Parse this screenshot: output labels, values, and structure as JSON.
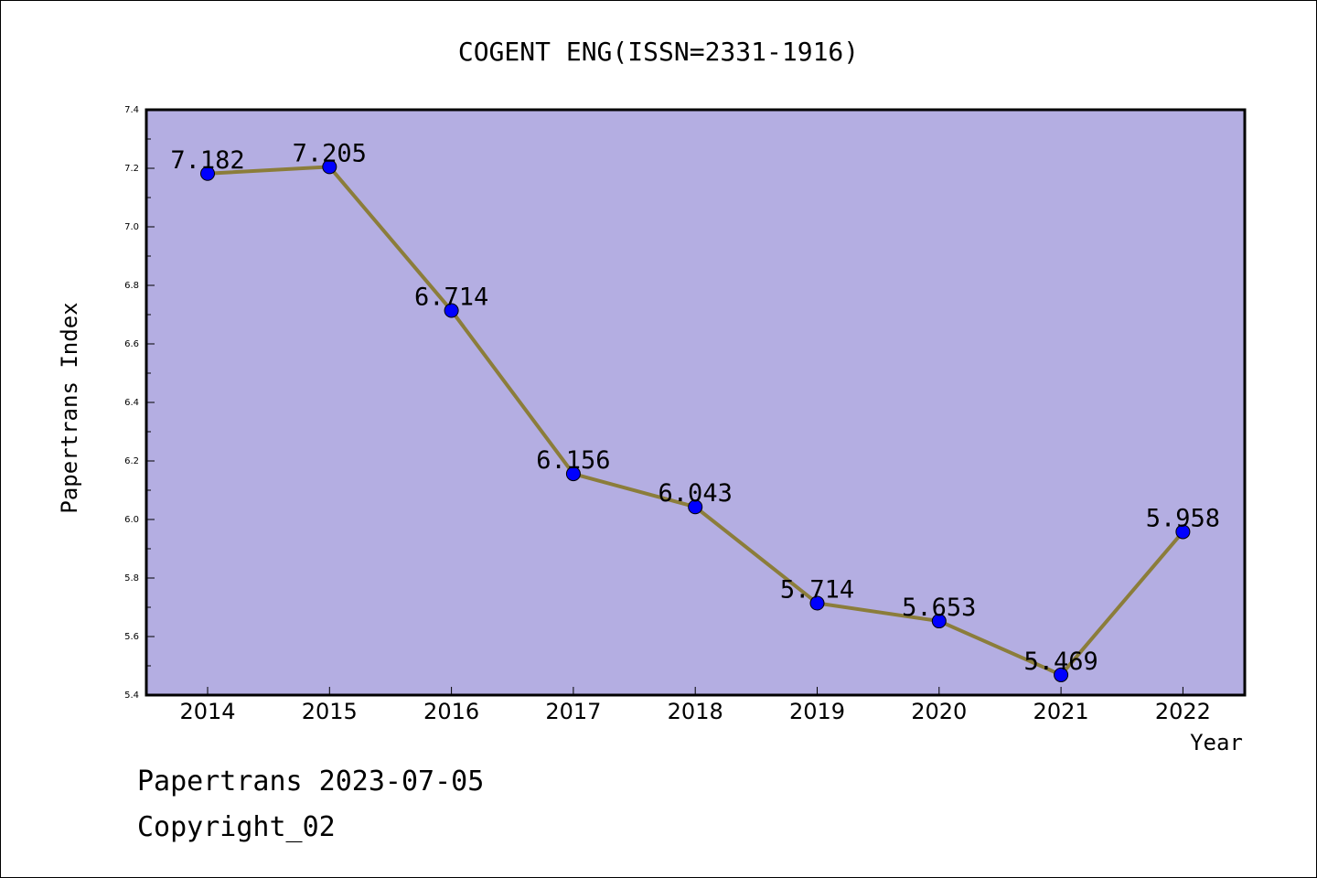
{
  "chart_data": {
    "type": "line",
    "title": "COGENT ENG(ISSN=2331-1916)",
    "xlabel": "Year",
    "ylabel": "Papertrans Index",
    "categories": [
      "2014",
      "2015",
      "2016",
      "2017",
      "2018",
      "2019",
      "2020",
      "2021",
      "2022"
    ],
    "series": [
      {
        "values": [
          7.182,
          7.205,
          6.714,
          6.156,
          6.043,
          5.714,
          5.653,
          5.469,
          5.958
        ],
        "labels": [
          "7.182",
          "7.205",
          "6.714",
          "6.156",
          "6.043",
          "5.714",
          "5.653",
          "5.469",
          "5.958"
        ]
      }
    ],
    "yticks": [
      "5.4",
      "5.6",
      "5.8",
      "6.0",
      "6.2",
      "6.4",
      "6.6",
      "6.8",
      "7.0",
      "7.2",
      "7.4"
    ],
    "ylim": [
      5.4,
      7.4
    ],
    "grid": false,
    "legend": "none",
    "colors": {
      "plot_background": "#b4aee2",
      "line": "#8b7d3a",
      "marker": "#0000ff"
    }
  },
  "footer": {
    "source": "Papertrans 2023-07-05",
    "copyright": "Copyright_02"
  }
}
